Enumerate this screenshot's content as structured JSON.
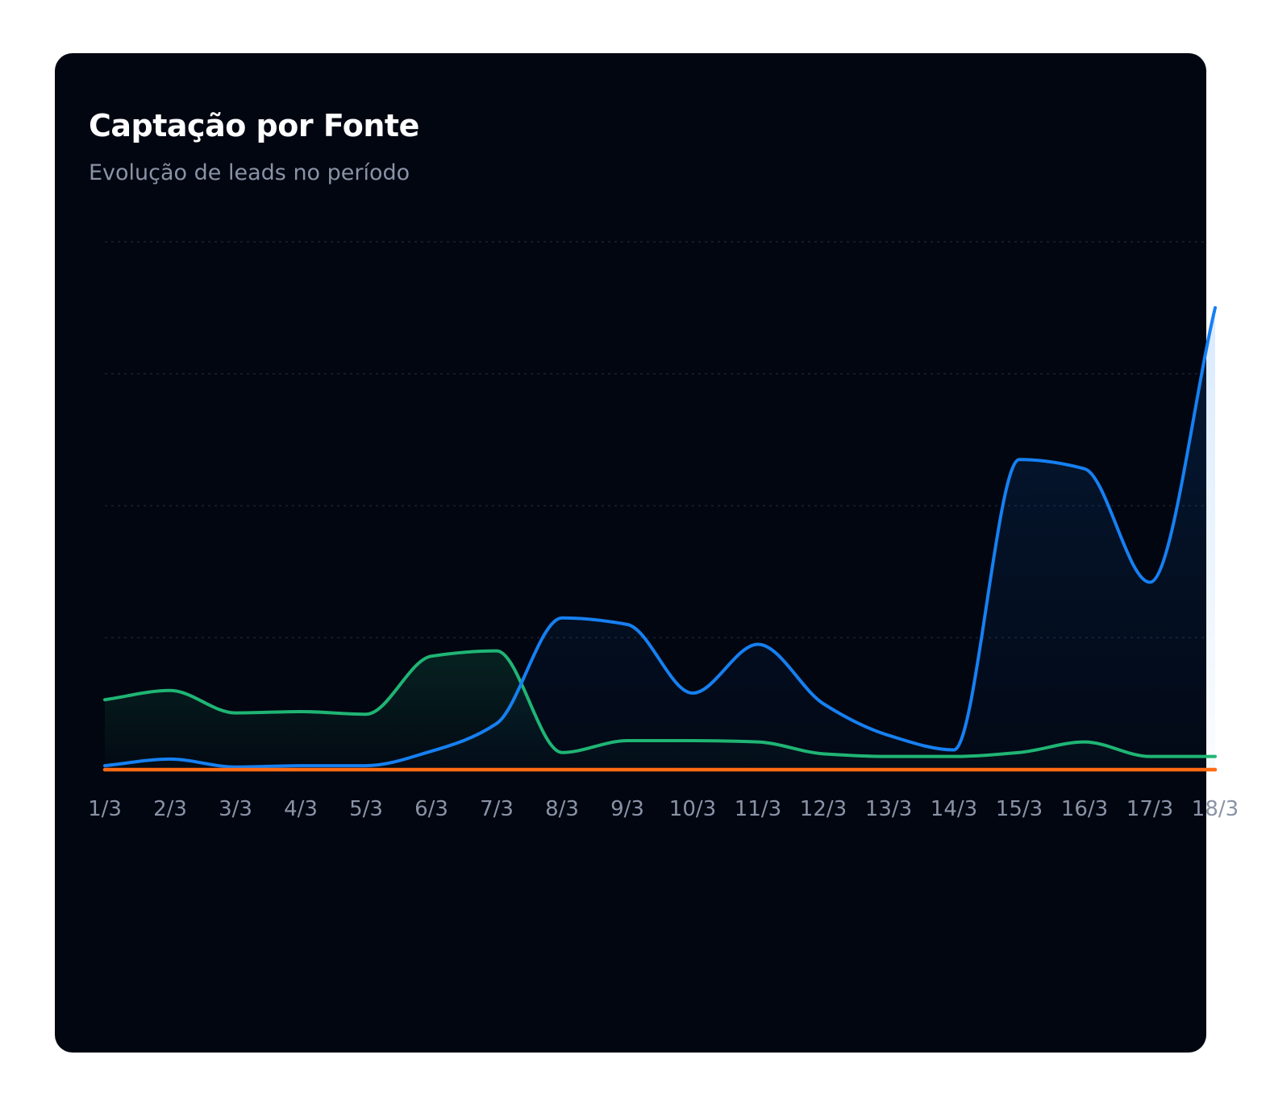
{
  "card": {
    "title": "Captação por Fonte",
    "subtitle": "Evolução de leads no período"
  },
  "chart_data": {
    "type": "area",
    "title": "Captação por Fonte",
    "subtitle": "Evolução de leads no período",
    "xlabel": "",
    "ylabel": "",
    "categories": [
      "1/3",
      "2/3",
      "3/3",
      "4/3",
      "5/3",
      "6/3",
      "7/3",
      "8/3",
      "9/3",
      "10/3",
      "11/3",
      "12/3",
      "13/3",
      "14/3",
      "15/3",
      "16/3",
      "17/3",
      "18/3"
    ],
    "ylim": [
      0,
      40
    ],
    "grid": true,
    "legend": "none",
    "series": [
      {
        "name": "green",
        "color": "#1fb574",
        "values": [
          5.3,
          6.0,
          4.3,
          4.4,
          4.2,
          8.6,
          9.0,
          1.3,
          2.2,
          2.2,
          2.1,
          1.2,
          1.0,
          1.0,
          1.3,
          2.1,
          1.0,
          1.0
        ]
      },
      {
        "name": "blue",
        "color": "#1680f2",
        "values": [
          0.3,
          0.8,
          0.2,
          0.3,
          0.3,
          1.4,
          3.5,
          11.5,
          11.0,
          5.8,
          9.5,
          5.0,
          2.6,
          1.5,
          23.5,
          22.8,
          14.2,
          35.0
        ]
      },
      {
        "name": "orange",
        "color": "#ff6a13",
        "values": [
          0,
          0,
          0,
          0,
          0,
          0,
          0,
          0,
          0,
          0,
          0,
          0,
          0,
          0,
          0,
          0,
          0,
          0
        ]
      }
    ]
  }
}
